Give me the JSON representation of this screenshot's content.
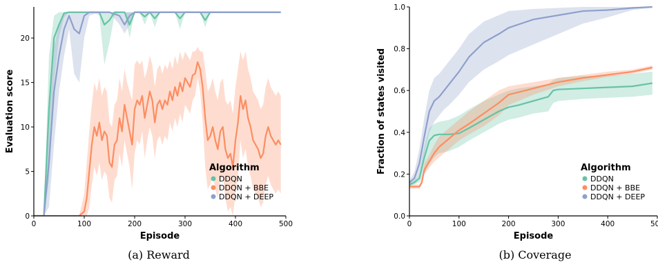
{
  "captions": [
    "(a) Reward",
    "(b) Coverage"
  ],
  "legend": {
    "title": "Algorithm",
    "entries": [
      "DDQN",
      "DDQN + BBE",
      "DDQN + DEEP"
    ],
    "colors": [
      "#66c2a5",
      "#fc8d62",
      "#8da0cb"
    ]
  },
  "chart_data": [
    {
      "type": "line",
      "xlabel": "Episode",
      "ylabel": "Evaluation score",
      "xlim": [
        0,
        500
      ],
      "ylim": [
        0,
        23.5
      ],
      "xticks": [
        "0",
        "100",
        "200",
        "300",
        "400",
        "500"
      ],
      "yticks": [
        "0",
        "5",
        "10",
        "15",
        "20"
      ],
      "grid": false,
      "legend_position": "lower-right",
      "series": [
        {
          "name": "DDQN",
          "x": [
            0,
            20,
            30,
            40,
            50,
            60,
            70,
            80,
            100,
            120,
            130,
            140,
            150,
            160,
            170,
            180,
            190,
            200,
            210,
            220,
            230,
            240,
            250,
            260,
            270,
            280,
            290,
            300,
            310,
            320,
            330,
            340,
            350,
            360,
            380,
            400,
            420,
            440,
            460,
            480,
            490
          ],
          "y": [
            0,
            0,
            12,
            20,
            21.5,
            22.8,
            22.9,
            22.9,
            22.9,
            22.9,
            22.9,
            21.5,
            22.0,
            22.9,
            22.9,
            22.9,
            21.5,
            22.9,
            22.9,
            22.4,
            22.9,
            22.2,
            22.9,
            22.9,
            22.9,
            22.9,
            22.2,
            22.9,
            22.9,
            22.9,
            22.9,
            22.0,
            22.9,
            22.9,
            22.9,
            22.9,
            22.9,
            22.9,
            22.9,
            22.9,
            22.9
          ],
          "lower": [
            0,
            0,
            4,
            15,
            20,
            22.3,
            22.9,
            22.9,
            22.9,
            22.9,
            22.5,
            17.0,
            19.5,
            22.5,
            22.9,
            22.9,
            20.0,
            22.9,
            22.9,
            21.5,
            22.9,
            21.2,
            22.9,
            22.9,
            22.9,
            22.9,
            21.0,
            22.9,
            22.9,
            22.9,
            22.9,
            21.2,
            22.9,
            22.9,
            22.9,
            22.9,
            22.9,
            22.9,
            22.9,
            22.9,
            22.9
          ],
          "upper": [
            0,
            0,
            18,
            22.5,
            22.9,
            22.9,
            22.9,
            22.9,
            22.9,
            22.9,
            22.9,
            22.9,
            22.9,
            22.9,
            22.9,
            22.9,
            22.9,
            22.9,
            22.9,
            22.9,
            22.9,
            22.9,
            22.9,
            22.9,
            22.9,
            22.9,
            22.9,
            22.9,
            22.9,
            22.9,
            22.9,
            22.9,
            22.9,
            22.9,
            22.9,
            22.9,
            22.9,
            22.9,
            22.9,
            22.9,
            22.9
          ]
        },
        {
          "name": "DDQN + BBE",
          "x": [
            0,
            70,
            90,
            100,
            105,
            110,
            115,
            120,
            125,
            130,
            135,
            140,
            145,
            150,
            155,
            160,
            165,
            170,
            175,
            180,
            185,
            190,
            195,
            200,
            205,
            210,
            215,
            220,
            225,
            230,
            235,
            240,
            245,
            250,
            255,
            260,
            265,
            270,
            275,
            280,
            285,
            290,
            295,
            300,
            305,
            310,
            315,
            320,
            325,
            330,
            335,
            340,
            345,
            350,
            355,
            360,
            365,
            370,
            375,
            380,
            385,
            390,
            395,
            400,
            405,
            410,
            415,
            420,
            425,
            430,
            435,
            440,
            445,
            450,
            455,
            460,
            465,
            470,
            475,
            480,
            485,
            490
          ],
          "y": [
            0,
            0,
            0,
            0.5,
            2.0,
            5.0,
            8.0,
            10.0,
            9.0,
            10.5,
            8.5,
            9.5,
            9.0,
            6.0,
            5.5,
            8.0,
            8.5,
            11.0,
            9.5,
            12.5,
            11.0,
            9.5,
            8.0,
            12.0,
            13.0,
            12.5,
            13.5,
            11.0,
            12.5,
            14.0,
            13.0,
            10.5,
            12.5,
            13.0,
            12.0,
            13.0,
            12.5,
            14.0,
            13.0,
            14.5,
            13.5,
            15.0,
            14.0,
            15.5,
            15.0,
            14.5,
            15.8,
            16.0,
            17.3,
            16.5,
            14.5,
            11.0,
            8.5,
            9.0,
            10.0,
            8.5,
            7.5,
            9.5,
            10.0,
            7.5,
            6.5,
            7.0,
            5.5,
            8.5,
            10.5,
            13.5,
            12.0,
            13.0,
            11.0,
            10.0,
            8.5,
            8.0,
            7.5,
            6.5,
            7.0,
            9.0,
            10.0,
            9.0,
            8.5,
            8.0,
            8.5,
            8.0
          ],
          "lower": [
            0,
            0,
            0,
            0,
            0,
            1.0,
            3.5,
            5.5,
            4.5,
            6.0,
            4.0,
            5.0,
            4.5,
            2.0,
            1.5,
            4.0,
            4.5,
            7.0,
            5.5,
            8.5,
            7.0,
            5.5,
            3.0,
            7.0,
            8.5,
            8.0,
            9.5,
            6.5,
            8.5,
            10.0,
            9.0,
            6.5,
            8.5,
            9.0,
            8.0,
            9.0,
            8.5,
            10.5,
            9.5,
            11.0,
            10.0,
            11.5,
            10.5,
            12.5,
            12.0,
            11.5,
            13.0,
            13.5,
            15.5,
            14.0,
            10.5,
            5.5,
            3.0,
            3.5,
            4.5,
            3.0,
            2.0,
            4.0,
            4.5,
            2.0,
            0.5,
            1.0,
            0,
            2.5,
            4.5,
            8.5,
            6.5,
            7.5,
            5.5,
            4.5,
            3.0,
            2.5,
            2.0,
            1.0,
            1.5,
            3.5,
            4.5,
            3.5,
            3.0,
            2.5,
            3.0,
            2.5
          ],
          "upper": [
            0,
            0,
            0,
            2.5,
            6.0,
            9.5,
            12.5,
            15.0,
            14.0,
            15.5,
            13.5,
            14.5,
            14.0,
            10.5,
            10.0,
            12.5,
            13.0,
            15.5,
            14.0,
            16.5,
            15.0,
            14.0,
            13.0,
            17.0,
            17.5,
            17.0,
            17.5,
            15.5,
            16.5,
            18.0,
            17.0,
            14.5,
            16.5,
            17.0,
            16.0,
            17.0,
            16.5,
            17.5,
            16.5,
            18.0,
            17.0,
            18.5,
            17.5,
            18.5,
            18.0,
            17.5,
            18.5,
            18.5,
            19.0,
            18.5,
            18.5,
            16.5,
            14.0,
            14.5,
            15.5,
            14.0,
            13.0,
            15.0,
            15.5,
            13.0,
            12.5,
            13.0,
            11.5,
            14.5,
            16.5,
            18.5,
            17.5,
            18.5,
            16.5,
            15.5,
            14.0,
            13.5,
            13.0,
            12.0,
            12.5,
            14.5,
            15.5,
            14.5,
            14.0,
            13.5,
            14.0,
            13.5
          ]
        },
        {
          "name": "DDQN + DEEP",
          "x": [
            0,
            20,
            30,
            40,
            50,
            60,
            70,
            80,
            90,
            100,
            110,
            130,
            150,
            170,
            180,
            190,
            200,
            220,
            240,
            260,
            280,
            300,
            320,
            340,
            360,
            380,
            400,
            420,
            440,
            460,
            480,
            490
          ],
          "y": [
            0,
            0,
            6,
            14,
            18,
            21,
            22.5,
            21.0,
            20.5,
            22.5,
            22.9,
            22.9,
            22.9,
            22.5,
            21.5,
            22.5,
            22.9,
            22.9,
            22.9,
            22.9,
            22.9,
            22.9,
            22.9,
            22.9,
            22.9,
            22.9,
            22.9,
            22.9,
            22.9,
            22.9,
            22.9,
            22.9
          ],
          "lower": [
            0,
            0,
            1,
            8,
            14,
            18,
            21,
            16,
            15,
            20,
            22.5,
            22.9,
            22.9,
            21.5,
            20.5,
            21.5,
            22.9,
            22.9,
            22.9,
            22.9,
            22.9,
            22.9,
            22.9,
            22.9,
            22.9,
            22.9,
            22.9,
            22.9,
            22.9,
            22.9,
            22.9,
            22.9
          ],
          "upper": [
            0,
            0,
            12,
            19,
            21.5,
            22.9,
            22.9,
            22.9,
            22.9,
            22.9,
            22.9,
            22.9,
            22.9,
            22.9,
            22.9,
            22.9,
            22.9,
            22.9,
            22.9,
            22.9,
            22.9,
            22.9,
            22.9,
            22.9,
            22.9,
            22.9,
            22.9,
            22.9,
            22.9,
            22.9,
            22.9,
            22.9
          ]
        }
      ]
    },
    {
      "type": "line",
      "xlabel": "Episode",
      "ylabel": "Fraction of states visited",
      "xlim": [
        0,
        500
      ],
      "ylim": [
        0,
        1.0
      ],
      "xticks": [
        "0",
        "100",
        "200",
        "300",
        "400",
        "500"
      ],
      "yticks": [
        "0.0",
        "0.2",
        "0.4",
        "0.6",
        "0.8",
        "1.0"
      ],
      "grid": false,
      "legend_position": "lower-right",
      "series": [
        {
          "name": "DDQN",
          "x": [
            0,
            10,
            20,
            30,
            40,
            50,
            60,
            80,
            100,
            120,
            150,
            180,
            200,
            220,
            250,
            280,
            290,
            300,
            350,
            400,
            450,
            490
          ],
          "y": [
            0.15,
            0.16,
            0.18,
            0.28,
            0.36,
            0.385,
            0.39,
            0.39,
            0.395,
            0.42,
            0.46,
            0.5,
            0.52,
            0.53,
            0.55,
            0.57,
            0.6,
            0.605,
            0.61,
            0.615,
            0.62,
            0.635
          ],
          "lower": [
            0.14,
            0.15,
            0.16,
            0.2,
            0.25,
            0.28,
            0.3,
            0.31,
            0.33,
            0.36,
            0.4,
            0.44,
            0.46,
            0.47,
            0.49,
            0.5,
            0.54,
            0.55,
            0.56,
            0.565,
            0.57,
            0.58
          ],
          "upper": [
            0.16,
            0.17,
            0.2,
            0.33,
            0.42,
            0.44,
            0.45,
            0.46,
            0.48,
            0.51,
            0.55,
            0.58,
            0.6,
            0.61,
            0.62,
            0.63,
            0.65,
            0.66,
            0.67,
            0.67,
            0.68,
            0.69
          ]
        },
        {
          "name": "DDQN + BBE",
          "x": [
            0,
            20,
            25,
            30,
            40,
            50,
            60,
            70,
            80,
            100,
            120,
            150,
            180,
            200,
            250,
            300,
            350,
            400,
            450,
            490
          ],
          "y": [
            0.14,
            0.14,
            0.16,
            0.22,
            0.26,
            0.3,
            0.33,
            0.35,
            0.37,
            0.41,
            0.44,
            0.49,
            0.54,
            0.58,
            0.61,
            0.64,
            0.66,
            0.675,
            0.69,
            0.71
          ],
          "lower": [
            0.13,
            0.13,
            0.15,
            0.2,
            0.23,
            0.26,
            0.28,
            0.3,
            0.32,
            0.36,
            0.39,
            0.43,
            0.48,
            0.53,
            0.58,
            0.62,
            0.645,
            0.665,
            0.68,
            0.7
          ],
          "upper": [
            0.15,
            0.15,
            0.18,
            0.25,
            0.29,
            0.34,
            0.38,
            0.4,
            0.42,
            0.46,
            0.5,
            0.55,
            0.6,
            0.62,
            0.64,
            0.66,
            0.675,
            0.69,
            0.7,
            0.72
          ]
        },
        {
          "name": "DDQN + DEEP",
          "x": [
            0,
            10,
            20,
            30,
            40,
            50,
            60,
            70,
            80,
            100,
            120,
            150,
            180,
            200,
            250,
            300,
            350,
            400,
            450,
            490
          ],
          "y": [
            0.16,
            0.18,
            0.25,
            0.38,
            0.5,
            0.55,
            0.57,
            0.6,
            0.63,
            0.69,
            0.76,
            0.83,
            0.87,
            0.9,
            0.94,
            0.96,
            0.98,
            0.985,
            0.995,
            1.0
          ],
          "lower": [
            0.15,
            0.16,
            0.2,
            0.3,
            0.4,
            0.45,
            0.48,
            0.51,
            0.53,
            0.58,
            0.64,
            0.7,
            0.74,
            0.77,
            0.82,
            0.87,
            0.92,
            0.95,
            0.985,
            0.995
          ],
          "upper": [
            0.17,
            0.21,
            0.32,
            0.47,
            0.6,
            0.66,
            0.68,
            0.71,
            0.74,
            0.8,
            0.87,
            0.93,
            0.96,
            0.98,
            0.99,
            0.995,
            1.0,
            1.0,
            1.0,
            1.0
          ]
        }
      ]
    }
  ]
}
